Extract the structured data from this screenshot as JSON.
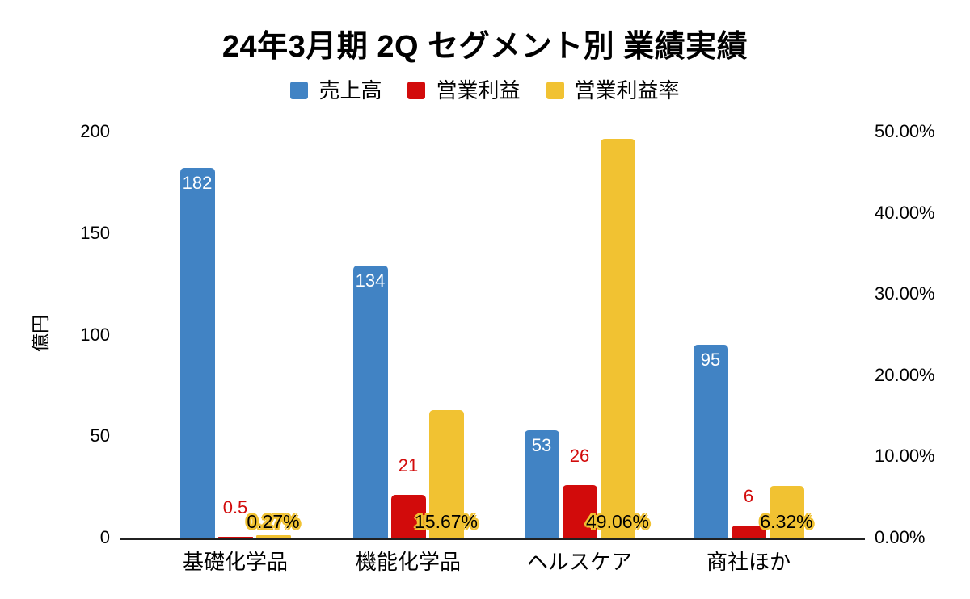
{
  "chart_data": {
    "type": "bar",
    "title": "24年3月期 2Q セグメント別 業績実績",
    "categories": [
      "基礎化学品",
      "機能化学品",
      "ヘルスケア",
      "商社ほか"
    ],
    "series": [
      {
        "name": "売上高",
        "axis": "left",
        "color": "#4183c4",
        "values": [
          182,
          134,
          53,
          95
        ],
        "labels": [
          "182",
          "134",
          "53",
          "95"
        ],
        "label_color": "#ffffff",
        "label_placement": "inside-top"
      },
      {
        "name": "営業利益",
        "axis": "left",
        "color": "#d20b0b",
        "values": [
          0.5,
          21,
          26,
          6
        ],
        "labels": [
          "0.5",
          "21",
          "26",
          "6"
        ],
        "label_color": "#d20b0b",
        "label_placement": "above"
      },
      {
        "name": "営業利益率",
        "axis": "right",
        "color": "#f1c232",
        "values": [
          0.27,
          15.67,
          49.06,
          6.32
        ],
        "labels": [
          "0.27%",
          "15.67%",
          "49.06%",
          "6.32%"
        ],
        "label_color": "#000000",
        "label_placement": "halo-bottom"
      }
    ],
    "left_axis": {
      "title": "億円",
      "min": 0,
      "max": 200,
      "ticks": [
        "0",
        "50",
        "100",
        "150",
        "200"
      ]
    },
    "right_axis": {
      "min": 0,
      "max": 50,
      "ticks": [
        "0.00%",
        "10.00%",
        "20.00%",
        "30.00%",
        "40.00%",
        "50.00%"
      ]
    },
    "grid": false,
    "legend_position": "top",
    "background": "#ffffff"
  }
}
